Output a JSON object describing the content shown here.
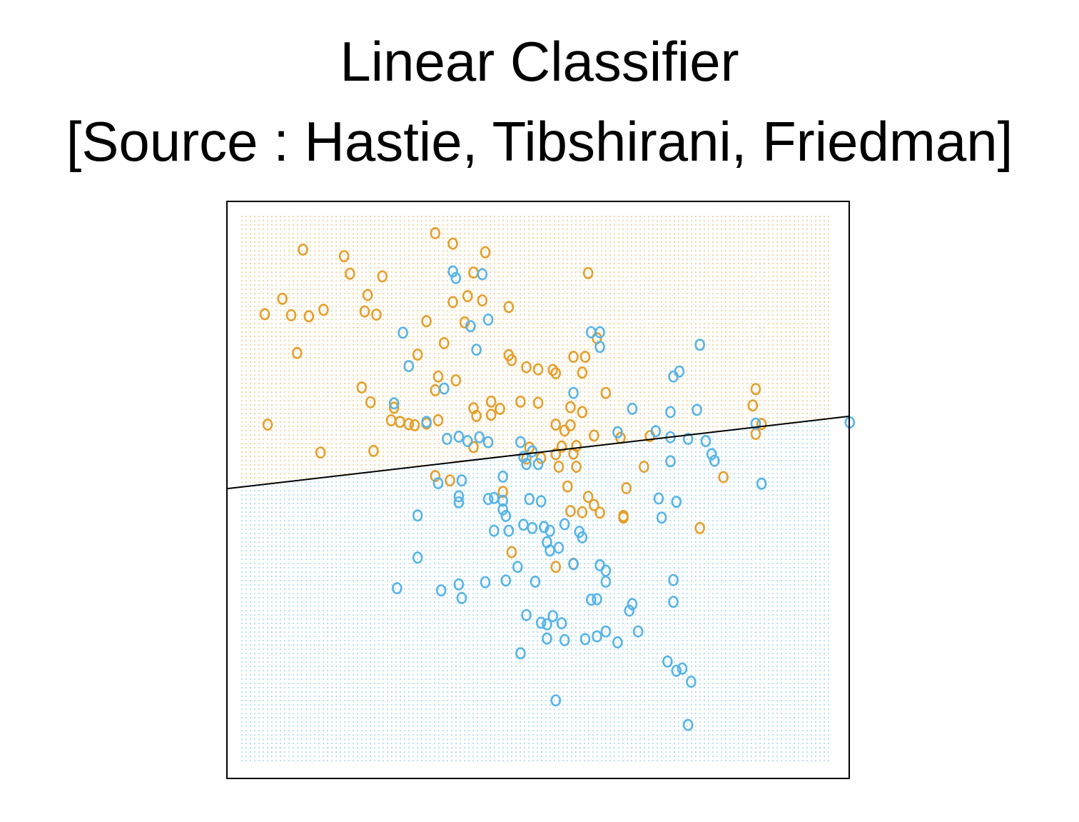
{
  "slide": {
    "title_line1": "Linear Classifier",
    "title_line2": "[Source : Hastie, Tibshirani, Friedman]"
  },
  "colors": {
    "orange": "#e69f2b",
    "blue": "#56b4e9",
    "boundary": "#000000",
    "frame": "#000000"
  },
  "chart_data": {
    "type": "scatter",
    "title": "",
    "xlabel": "",
    "ylabel": "",
    "xlim": [
      0,
      100
    ],
    "ylim": [
      0,
      100
    ],
    "grid": false,
    "marker_glyph": "o",
    "background_grid": "dotted class-region shading",
    "decision_boundary": {
      "type": "line",
      "points": [
        [
          0,
          50.4
        ],
        [
          100,
          62.9
        ]
      ]
    },
    "regions": [
      {
        "side": "above boundary",
        "color": "orange"
      },
      {
        "side": "below boundary",
        "color": "blue"
      }
    ],
    "series": [
      {
        "color": "orange",
        "points": [
          [
            10.5,
            93.8
          ],
          [
            17.5,
            92.6
          ],
          [
            33.0,
            96.8
          ],
          [
            36.0,
            94.9
          ],
          [
            41.5,
            93.3
          ],
          [
            18.5,
            89.4
          ],
          [
            24.0,
            88.9
          ],
          [
            39.5,
            89.6
          ],
          [
            59.0,
            89.5
          ],
          [
            7.0,
            84.8
          ],
          [
            21.5,
            85.5
          ],
          [
            38.5,
            85.3
          ],
          [
            4.0,
            82.0
          ],
          [
            8.5,
            81.8
          ],
          [
            11.5,
            81.6
          ],
          [
            14.0,
            82.8
          ],
          [
            21.0,
            82.5
          ],
          [
            23.0,
            81.9
          ],
          [
            36.0,
            84.2
          ],
          [
            41.0,
            84.5
          ],
          [
            45.5,
            83.3
          ],
          [
            31.5,
            80.7
          ],
          [
            38.0,
            80.5
          ],
          [
            34.5,
            76.7
          ],
          [
            60.5,
            77.6
          ],
          [
            9.5,
            74.9
          ],
          [
            30.0,
            74.6
          ],
          [
            45.5,
            74.5
          ],
          [
            46.0,
            73.6
          ],
          [
            48.5,
            72.3
          ],
          [
            50.5,
            71.9
          ],
          [
            56.5,
            74.2
          ],
          [
            58.5,
            74.2
          ],
          [
            53.0,
            71.8
          ],
          [
            53.5,
            71.2
          ],
          [
            58.0,
            71.3
          ],
          [
            36.5,
            69.9
          ],
          [
            33.5,
            70.6
          ],
          [
            20.5,
            68.6
          ],
          [
            33.0,
            68.1
          ],
          [
            62.0,
            67.6
          ],
          [
            22.0,
            65.9
          ],
          [
            26.0,
            64.9
          ],
          [
            39.5,
            64.8
          ],
          [
            42.5,
            66.0
          ],
          [
            44.0,
            64.7
          ],
          [
            47.5,
            66.0
          ],
          [
            50.5,
            65.8
          ],
          [
            56.0,
            65.0
          ],
          [
            58.0,
            64.1
          ],
          [
            40.0,
            63.4
          ],
          [
            42.5,
            63.6
          ],
          [
            87.5,
            68.3
          ],
          [
            87.0,
            65.3
          ],
          [
            4.5,
            61.8
          ],
          [
            27.0,
            62.3
          ],
          [
            28.5,
            61.9
          ],
          [
            29.5,
            61.7
          ],
          [
            31.5,
            62.0
          ],
          [
            25.5,
            62.6
          ],
          [
            33.5,
            62.6
          ],
          [
            53.5,
            61.8
          ],
          [
            56.0,
            61.7
          ],
          [
            55.0,
            60.7
          ],
          [
            60.0,
            59.8
          ],
          [
            64.5,
            59.4
          ],
          [
            88.5,
            61.9
          ],
          [
            87.5,
            60.1
          ],
          [
            69.5,
            59.7
          ],
          [
            13.5,
            56.7
          ],
          [
            22.5,
            57.0
          ],
          [
            49.0,
            57.6
          ],
          [
            54.5,
            57.8
          ],
          [
            57.0,
            57.9
          ],
          [
            56.5,
            56.5
          ],
          [
            53.5,
            56.4
          ],
          [
            51.0,
            55.7
          ],
          [
            39.5,
            57.7
          ],
          [
            48.5,
            55.6
          ],
          [
            54.0,
            54.1
          ],
          [
            57.0,
            54.1
          ],
          [
            68.5,
            54.1
          ],
          [
            82.0,
            52.2
          ],
          [
            33.0,
            52.4
          ],
          [
            35.5,
            51.6
          ],
          [
            65.5,
            50.2
          ],
          [
            44.5,
            49.5
          ],
          [
            55.5,
            50.5
          ],
          [
            59.0,
            48.6
          ],
          [
            60.0,
            47.1
          ],
          [
            56.0,
            46.0
          ],
          [
            58.0,
            45.8
          ],
          [
            61.0,
            45.7
          ],
          [
            65.0,
            45.1
          ],
          [
            65.0,
            44.8
          ],
          [
            78.0,
            42.9
          ],
          [
            46.0,
            38.5
          ],
          [
            53.5,
            35.8
          ],
          [
            56.5,
            36.4
          ]
        ]
      },
      {
        "color": "blue",
        "points": [
          [
            36.0,
            89.8
          ],
          [
            36.5,
            88.6
          ],
          [
            41.0,
            89.3
          ],
          [
            42.0,
            81.0
          ],
          [
            39.0,
            79.8
          ],
          [
            27.5,
            78.6
          ],
          [
            59.5,
            78.7
          ],
          [
            61.0,
            78.7
          ],
          [
            40.0,
            75.5
          ],
          [
            61.0,
            76.0
          ],
          [
            78.0,
            76.4
          ],
          [
            28.5,
            72.5
          ],
          [
            74.5,
            71.5
          ],
          [
            73.5,
            70.6
          ],
          [
            34.5,
            68.4
          ],
          [
            56.5,
            67.6
          ],
          [
            26.0,
            65.7
          ],
          [
            66.5,
            64.7
          ],
          [
            73.0,
            64.1
          ],
          [
            77.5,
            64.5
          ],
          [
            31.5,
            62.3
          ],
          [
            87.5,
            62.0
          ],
          [
            103.5,
            62.2
          ],
          [
            64.0,
            60.4
          ],
          [
            70.5,
            60.6
          ],
          [
            73.0,
            59.5
          ],
          [
            35.0,
            59.2
          ],
          [
            37.0,
            59.6
          ],
          [
            38.5,
            58.8
          ],
          [
            40.5,
            59.5
          ],
          [
            42.0,
            58.6
          ],
          [
            47.5,
            58.6
          ],
          [
            76.0,
            59.2
          ],
          [
            79.0,
            58.8
          ],
          [
            49.5,
            56.9
          ],
          [
            48.0,
            55.9
          ],
          [
            48.5,
            54.6
          ],
          [
            50.5,
            54.6
          ],
          [
            73.0,
            55.1
          ],
          [
            80.0,
            56.4
          ],
          [
            80.5,
            55.2
          ],
          [
            44.5,
            52.3
          ],
          [
            37.5,
            51.6
          ],
          [
            33.5,
            51.1
          ],
          [
            37.0,
            48.7
          ],
          [
            88.5,
            51.0
          ],
          [
            42.0,
            48.2
          ],
          [
            43.0,
            48.4
          ],
          [
            44.5,
            47.9
          ],
          [
            49.0,
            48.2
          ],
          [
            51.0,
            47.8
          ],
          [
            71.0,
            48.3
          ],
          [
            74.0,
            47.7
          ],
          [
            37.0,
            47.6
          ],
          [
            44.5,
            46.3
          ],
          [
            30.0,
            45.2
          ],
          [
            45.0,
            45.1
          ],
          [
            71.5,
            44.8
          ],
          [
            48.0,
            43.5
          ],
          [
            51.5,
            43.1
          ],
          [
            55.0,
            43.6
          ],
          [
            57.5,
            42.2
          ],
          [
            43.0,
            42.4
          ],
          [
            45.5,
            42.4
          ],
          [
            49.5,
            42.9
          ],
          [
            52.5,
            42.4
          ],
          [
            58.0,
            41.2
          ],
          [
            52.0,
            40.3
          ],
          [
            54.0,
            39.3
          ],
          [
            52.5,
            38.8
          ],
          [
            30.0,
            37.5
          ],
          [
            47.0,
            35.8
          ],
          [
            56.5,
            36.3
          ],
          [
            61.0,
            36.1
          ],
          [
            62.0,
            35.1
          ],
          [
            62.0,
            33.1
          ],
          [
            73.5,
            33.4
          ],
          [
            37.0,
            32.6
          ],
          [
            41.5,
            33.0
          ],
          [
            45.0,
            33.3
          ],
          [
            50.0,
            33.1
          ],
          [
            26.5,
            31.9
          ],
          [
            34.0,
            31.5
          ],
          [
            37.5,
            30.1
          ],
          [
            59.5,
            29.8
          ],
          [
            60.5,
            29.9
          ],
          [
            66.5,
            29.0
          ],
          [
            73.5,
            29.4
          ],
          [
            66.0,
            27.8
          ],
          [
            48.5,
            27.0
          ],
          [
            53.0,
            26.8
          ],
          [
            51.0,
            25.6
          ],
          [
            52.0,
            25.3
          ],
          [
            54.5,
            25.5
          ],
          [
            67.5,
            24.0
          ],
          [
            62.0,
            24.0
          ],
          [
            52.0,
            22.7
          ],
          [
            55.0,
            22.4
          ],
          [
            58.5,
            22.6
          ],
          [
            60.5,
            23.1
          ],
          [
            64.0,
            22.0
          ],
          [
            47.5,
            20.0
          ],
          [
            72.5,
            18.5
          ],
          [
            74.0,
            16.8
          ],
          [
            75.0,
            17.2
          ],
          [
            76.5,
            14.8
          ],
          [
            53.5,
            11.4
          ],
          [
            76.0,
            6.9
          ]
        ]
      }
    ]
  }
}
